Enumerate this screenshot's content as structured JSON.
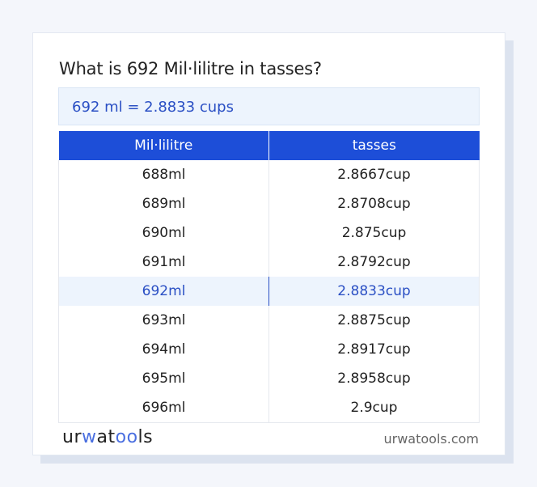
{
  "title": "What is 692 Mil·lilitre in tasses?",
  "result": "692 ml = 2.8833 cups",
  "table": {
    "headers": [
      "Mil·lilitre",
      "tasses"
    ],
    "rows": [
      [
        "688ml",
        "2.8667cup"
      ],
      [
        "689ml",
        "2.8708cup"
      ],
      [
        "690ml",
        "2.875cup"
      ],
      [
        "691ml",
        "2.8792cup"
      ],
      [
        "692ml",
        "2.8833cup"
      ],
      [
        "693ml",
        "2.8875cup"
      ],
      [
        "694ml",
        "2.8917cup"
      ],
      [
        "695ml",
        "2.8958cup"
      ],
      [
        "696ml",
        "2.9cup"
      ]
    ],
    "highlighted_row": 4
  },
  "footer": {
    "logo": "urwatools",
    "logo_parts": [
      "ur",
      "w",
      "at",
      "oo",
      "ls"
    ],
    "site": "urwatools.com"
  },
  "colors": {
    "accent": "#1d4ed8",
    "highlight_text": "#2a4fc4",
    "highlight_bg": "#edf4fd"
  }
}
